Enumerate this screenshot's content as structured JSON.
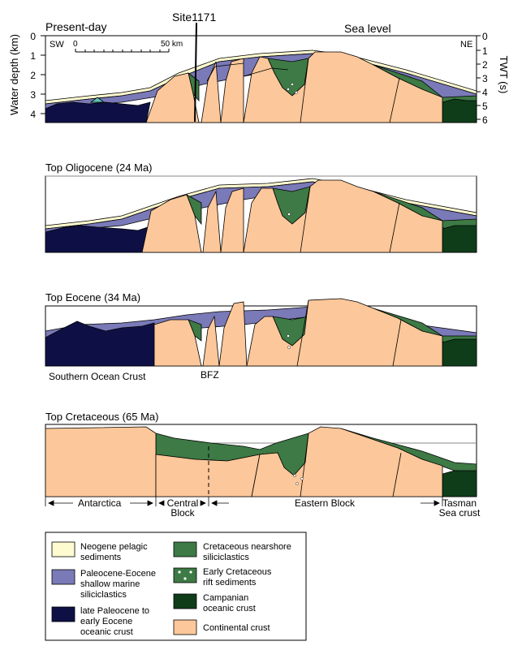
{
  "colors": {
    "neogene": "#fffbd0",
    "paleocene_eocene": "#7a7ab8",
    "late_paleocene_oceanic": "#0e1045",
    "cretaceous_nearshore": "#3d7a45",
    "campanian": "#0f3d1a",
    "continental": "#fcc79a",
    "teal_mound": "#5fc4b8"
  },
  "panel1": {
    "title": "Present-day",
    "site_label": "Site1171",
    "sea_level_label": "Sea level",
    "left_axis_label": "Water depth (km)",
    "left_ticks": [
      "0",
      "1",
      "2",
      "3",
      "4"
    ],
    "right_axis_label": "TWT (s)",
    "right_ticks": [
      "0",
      "1",
      "2",
      "3",
      "4",
      "5",
      "6"
    ],
    "sw_label": "SW",
    "ne_label": "NE",
    "scale_zero": "0",
    "scale_end": "50 km"
  },
  "panel2": {
    "title": "Top Oligocene (24 Ma)"
  },
  "panel3": {
    "title": "Top Eocene (34 Ma)",
    "southern_ocean_label": "Southern Ocean Crust",
    "bfz_label": "BFZ"
  },
  "panel4": {
    "title": "Top Cretaceous (65 Ma)",
    "antarctica_label": "Antarctica",
    "central_block_line1": "Central",
    "central_block_line2": "Block",
    "eastern_block_label": "Eastern Block",
    "tasman_line1": "Tasman",
    "tasman_line2": "Sea crust"
  },
  "legend": {
    "items": [
      {
        "line1": "Neogene pelagic",
        "line2": "sediments",
        "line3": "",
        "color_key": "neogene"
      },
      {
        "line1": "Paleocene-Eocene",
        "line2": "shallow marine",
        "line3": "siliciclastics",
        "color_key": "paleocene_eocene"
      },
      {
        "line1": "late Paleocene to",
        "line2": "early Eocene",
        "line3": "oceanic crust",
        "color_key": "late_paleocene_oceanic"
      },
      {
        "line1": "Cretaceous nearshore",
        "line2": "siliciclastics",
        "line3": "",
        "color_key": "cretaceous_nearshore"
      },
      {
        "line1": "Early Cretaceous",
        "line2": "rift sediments",
        "line3": "",
        "color_key": "cretaceous_nearshore"
      },
      {
        "line1": "Campanian",
        "line2": "oceanic crust",
        "line3": "",
        "color_key": "campanian"
      },
      {
        "line1": "Continental crust",
        "line2": "",
        "line3": "",
        "color_key": "continental"
      }
    ]
  }
}
